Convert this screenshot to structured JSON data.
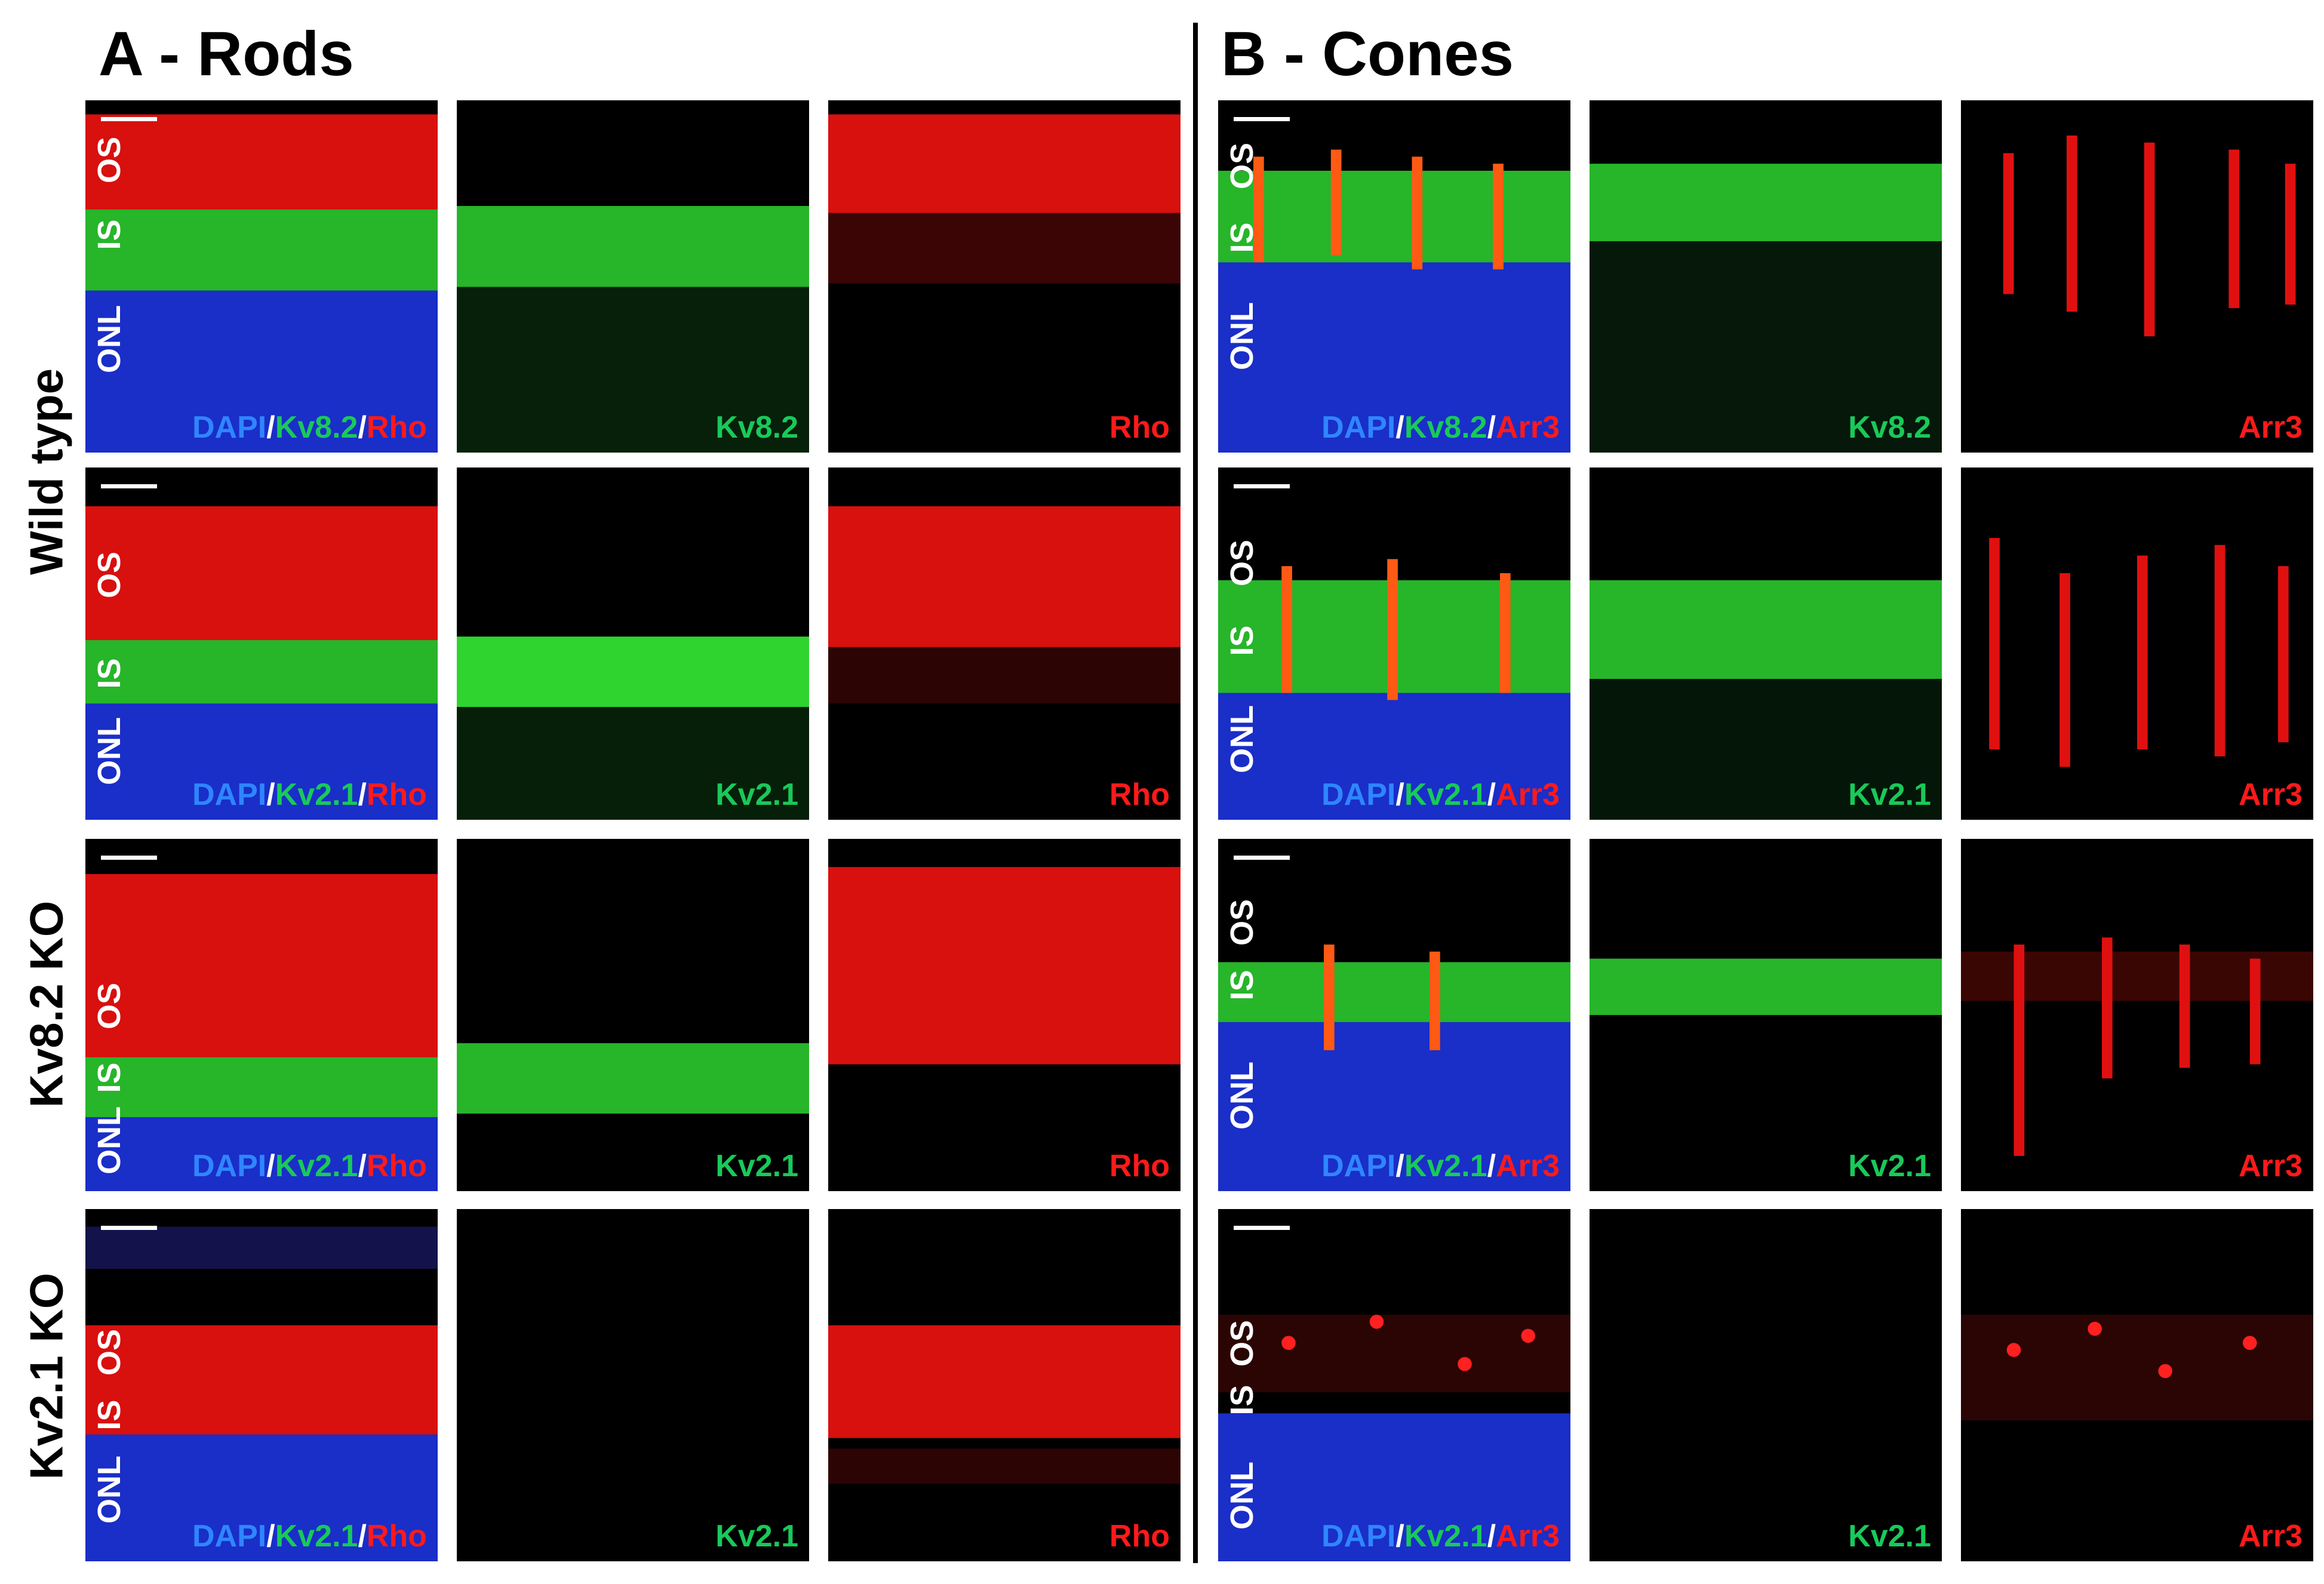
{
  "colors": {
    "dapi": "#2f86ff",
    "green": "#19c95a",
    "red": "#ff1a1a",
    "sep": "#ffffff"
  },
  "sections": {
    "a": "A - Rods",
    "b": "B - Cones"
  },
  "row_labels": {
    "wt": "Wild type",
    "kv82ko": "Kv8.2 KO",
    "kv21ko": "Kv2.1 KO"
  },
  "panels": {
    "a11": {
      "os": "OS",
      "is": "IS",
      "onl": "ONL",
      "merge": {
        "dapi": "DAPI",
        "sep1": "/",
        "green": "Kv8.2",
        "sep2": "/",
        "red": "Rho"
      }
    },
    "a12": {
      "label": "Kv8.2"
    },
    "a13": {
      "label": "Rho"
    },
    "a21": {
      "os": "OS",
      "is": "IS",
      "onl": "ONL",
      "merge": {
        "dapi": "DAPI",
        "sep1": "/",
        "green": "Kv2.1",
        "sep2": "/",
        "red": "Rho"
      }
    },
    "a22": {
      "label": "Kv2.1"
    },
    "a23": {
      "label": "Rho"
    },
    "a31": {
      "os": "OS",
      "is": "IS",
      "onl": "ONL",
      "merge": {
        "dapi": "DAPI",
        "sep1": "/",
        "green": "Kv2.1",
        "sep2": "/",
        "red": "Rho"
      }
    },
    "a32": {
      "label": "Kv2.1"
    },
    "a33": {
      "label": "Rho"
    },
    "a41": {
      "os": "OS",
      "is": "IS",
      "onl": "ONL",
      "merge": {
        "dapi": "DAPI",
        "sep1": "/",
        "green": "Kv2.1",
        "sep2": "/",
        "red": "Rho"
      }
    },
    "a42": {
      "label": "Kv2.1"
    },
    "a43": {
      "label": "Rho"
    },
    "b11": {
      "os": "OS",
      "is": "IS",
      "onl": "ONL",
      "merge": {
        "dapi": "DAPI",
        "sep1": "/",
        "green": "Kv8.2",
        "sep2": "/",
        "red": "Arr3"
      }
    },
    "b12": {
      "label": "Kv8.2"
    },
    "b13": {
      "label": "Arr3"
    },
    "b21": {
      "os": "OS",
      "is": "IS",
      "onl": "ONL",
      "merge": {
        "dapi": "DAPI",
        "sep1": "/",
        "green": "Kv2.1",
        "sep2": "/",
        "red": "Arr3"
      }
    },
    "b22": {
      "label": "Kv2.1"
    },
    "b23": {
      "label": "Arr3"
    },
    "b31": {
      "os": "OS",
      "is": "IS",
      "onl": "ONL",
      "merge": {
        "dapi": "DAPI",
        "sep1": "/",
        "green": "Kv2.1",
        "sep2": "/",
        "red": "Arr3"
      }
    },
    "b32": {
      "label": "Kv2.1"
    },
    "b33": {
      "label": "Arr3"
    },
    "b41": {
      "os": "OS",
      "is": "IS",
      "onl": "ONL",
      "merge": {
        "dapi": "DAPI",
        "sep1": "/",
        "green": "Kv2.1",
        "sep2": "/",
        "red": "Arr3"
      }
    },
    "b42": {
      "label": "Kv2.1"
    },
    "b43": {
      "label": "Arr3"
    }
  }
}
